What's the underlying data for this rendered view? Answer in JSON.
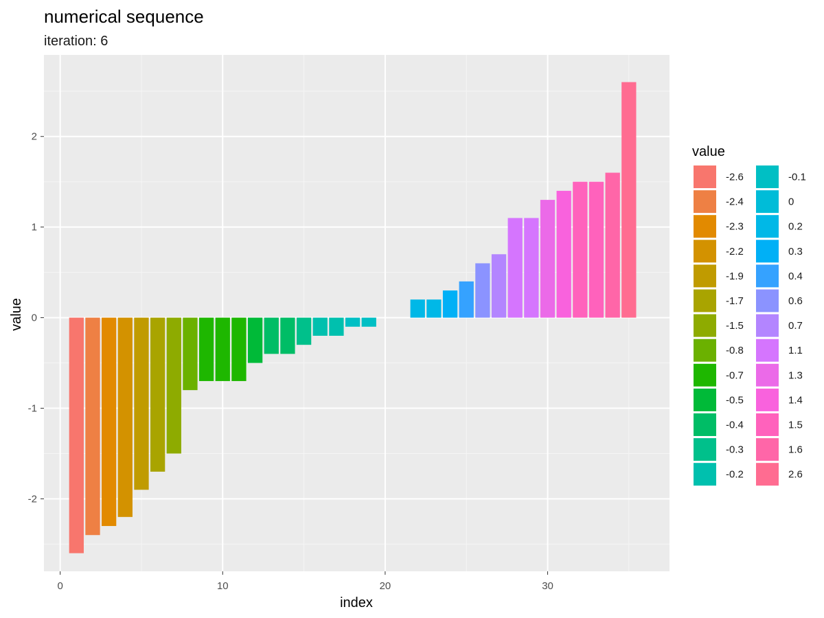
{
  "chart_data": {
    "type": "bar",
    "title": "numerical sequence",
    "subtitle": "iteration: 6",
    "xlabel": "index",
    "ylabel": "value",
    "xlim": [
      -1,
      37.5
    ],
    "ylim": [
      -2.8,
      2.9
    ],
    "x_ticks": [
      0,
      10,
      20,
      30
    ],
    "y_ticks": [
      -2,
      -1,
      0,
      1,
      2
    ],
    "grid": true,
    "legend_position": "right",
    "legend_title": "value",
    "bars": [
      {
        "x": 1,
        "value": -2.6
      },
      {
        "x": 2,
        "value": -2.4
      },
      {
        "x": 3,
        "value": -2.3
      },
      {
        "x": 4,
        "value": -2.2
      },
      {
        "x": 5,
        "value": -1.9
      },
      {
        "x": 6,
        "value": -1.7
      },
      {
        "x": 7,
        "value": -1.5
      },
      {
        "x": 8,
        "value": -0.8
      },
      {
        "x": 9,
        "value": -0.7
      },
      {
        "x": 10,
        "value": -0.7
      },
      {
        "x": 11,
        "value": -0.7
      },
      {
        "x": 12,
        "value": -0.5
      },
      {
        "x": 13,
        "value": -0.4
      },
      {
        "x": 14,
        "value": -0.4
      },
      {
        "x": 15,
        "value": -0.3
      },
      {
        "x": 16,
        "value": -0.2
      },
      {
        "x": 17,
        "value": -0.2
      },
      {
        "x": 18,
        "value": -0.1
      },
      {
        "x": 19,
        "value": -0.1
      },
      {
        "x": 20,
        "value": 0
      },
      {
        "x": 21,
        "value": 0
      },
      {
        "x": 22,
        "value": 0.2
      },
      {
        "x": 23,
        "value": 0.2
      },
      {
        "x": 24,
        "value": 0.3
      },
      {
        "x": 25,
        "value": 0.4
      },
      {
        "x": 26,
        "value": 0.6
      },
      {
        "x": 27,
        "value": 0.7
      },
      {
        "x": 28,
        "value": 1.1
      },
      {
        "x": 29,
        "value": 1.1
      },
      {
        "x": 30,
        "value": 1.3
      },
      {
        "x": 31,
        "value": 1.4
      },
      {
        "x": 32,
        "value": 1.5
      },
      {
        "x": 33,
        "value": 1.5
      },
      {
        "x": 34,
        "value": 1.6
      },
      {
        "x": 35,
        "value": 2.6
      }
    ],
    "legend": [
      {
        "label": "-2.6",
        "color": "#F8766D"
      },
      {
        "label": "-2.4",
        "color": "#EE8044"
      },
      {
        "label": "-2.3",
        "color": "#E28A00"
      },
      {
        "label": "-2.2",
        "color": "#D39200"
      },
      {
        "label": "-1.9",
        "color": "#C09B00"
      },
      {
        "label": "-1.7",
        "color": "#A9A400"
      },
      {
        "label": "-1.5",
        "color": "#8EAB00"
      },
      {
        "label": "-0.8",
        "color": "#6BB100"
      },
      {
        "label": "-0.7",
        "color": "#1EB700"
      },
      {
        "label": "-0.5",
        "color": "#00BA38"
      },
      {
        "label": "-0.4",
        "color": "#00BD66"
      },
      {
        "label": "-0.3",
        "color": "#00C08B"
      },
      {
        "label": "-0.2",
        "color": "#00C0AE"
      },
      {
        "label": "-0.1",
        "color": "#00BFC4"
      },
      {
        "label": "0",
        "color": "#00BCD8"
      },
      {
        "label": "0.2",
        "color": "#00B8E7"
      },
      {
        "label": "0.3",
        "color": "#00B0F6"
      },
      {
        "label": "0.4",
        "color": "#35A2FF"
      },
      {
        "label": "0.6",
        "color": "#8B93FF"
      },
      {
        "label": "0.7",
        "color": "#B385FF"
      },
      {
        "label": "1.1",
        "color": "#D575FE"
      },
      {
        "label": "1.3",
        "color": "#EB6AE8"
      },
      {
        "label": "1.4",
        "color": "#F962DD"
      },
      {
        "label": "1.5",
        "color": "#FF62BC"
      },
      {
        "label": "1.6",
        "color": "#FF66A8"
      },
      {
        "label": "2.6",
        "color": "#FF6C91"
      }
    ],
    "colors": {
      "panel_background": "#EBEBEB",
      "grid_major": "#FFFFFF",
      "grid_minor": "#F5F5F5"
    }
  }
}
